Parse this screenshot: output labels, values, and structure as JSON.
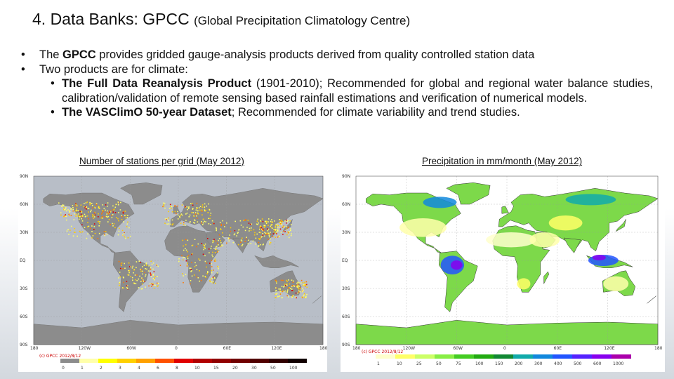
{
  "slide": {
    "title_main": "4. Data Banks: GPCC ",
    "title_sub": "(Global Precipitation Climatology Centre)"
  },
  "bullets": {
    "b1_pre": "The ",
    "b1_bold": "GPCC",
    "b1_post": " provides gridded gauge-analysis products derived from quality controlled station data",
    "b2": "Two products are for climate:",
    "b3_bold": "The Full Data Reanalysis Product",
    "b3_post": " (1901-2010); Recommended for global and regional water balance studies, calibration/validation of remote sensing based rainfall estimations and verification of numerical models.",
    "b4_bold": "The VASClimO 50-year Dataset",
    "b4_post": "; Recommended for climate variability and trend studies.",
    "bullet_char": "•"
  },
  "left_map": {
    "caption": "Number of stations per grid (May 2012)",
    "stamp": "(c) GPCC 2012/8/12",
    "lat_labels": [
      "90N",
      "60N",
      "30N",
      "EQ",
      "30S",
      "60S",
      "90S"
    ],
    "lon_labels": [
      "180",
      "120W",
      "60W",
      "0",
      "60E",
      "120E",
      "180"
    ],
    "legend": [
      "0",
      "1",
      "2",
      "3",
      "4",
      "6",
      "8",
      "10",
      "15",
      "20",
      "30",
      "50",
      "100"
    ],
    "legend_colors": [
      "#8c8c8c",
      "#ffffaa",
      "#ffff00",
      "#ffd000",
      "#ffa000",
      "#ff5000",
      "#e00000",
      "#b00000",
      "#900000",
      "#700000",
      "#500000",
      "#300000",
      "#100000"
    ]
  },
  "right_map": {
    "caption": "Precipitation in mm/month (May 2012)",
    "stamp": "(c) GPCC 2012/8/12",
    "lat_labels": [
      "90N",
      "60N",
      "30N",
      "EQ",
      "30S",
      "60S",
      "90S"
    ],
    "lon_labels": [
      "180",
      "120W",
      "60W",
      "0",
      "60E",
      "120E",
      "180"
    ],
    "legend": [
      "1",
      "10",
      "25",
      "50",
      "75",
      "100",
      "150",
      "200",
      "300",
      "400",
      "500",
      "600",
      "1000"
    ],
    "legend_colors": [
      "#ffffcc",
      "#ffff66",
      "#ccff66",
      "#88ee44",
      "#44cc22",
      "#22aa11",
      "#118833",
      "#11aaaa",
      "#1188dd",
      "#2255ff",
      "#5522ff",
      "#8800ee",
      "#aa00aa"
    ]
  },
  "colors": {
    "land_left": "#8c8c8c",
    "ocean_left": "#b8bec7",
    "land_right": "#7dd94a",
    "ocean_right": "#ffffff"
  }
}
